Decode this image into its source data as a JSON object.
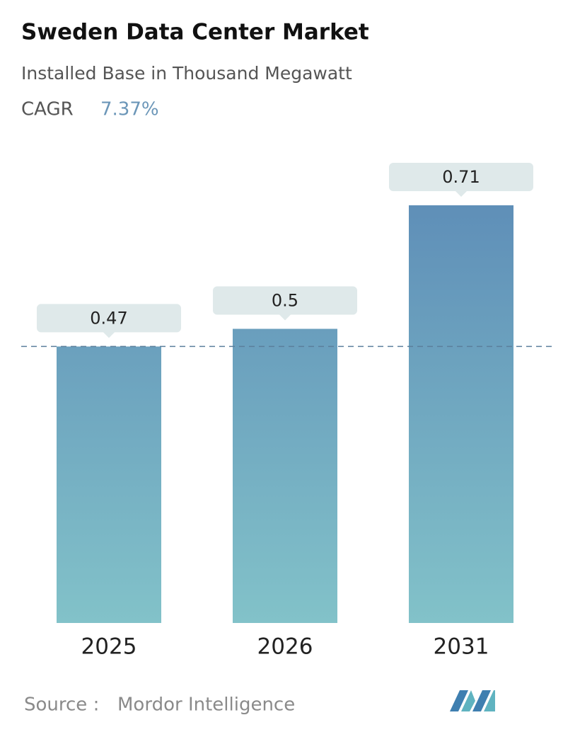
{
  "chart_data": {
    "type": "bar",
    "title": "Sweden Data Center Market",
    "subtitle": "Installed Base in Thousand Megawatt",
    "cagr_label": "CAGR",
    "cagr_value": "7.37%",
    "categories": [
      "2025",
      "2026",
      "2031"
    ],
    "values": [
      0.47,
      0.5,
      0.71
    ],
    "color": "#6a9bbd",
    "source_label": "Source :",
    "source": "Mordor Intelligence"
  }
}
